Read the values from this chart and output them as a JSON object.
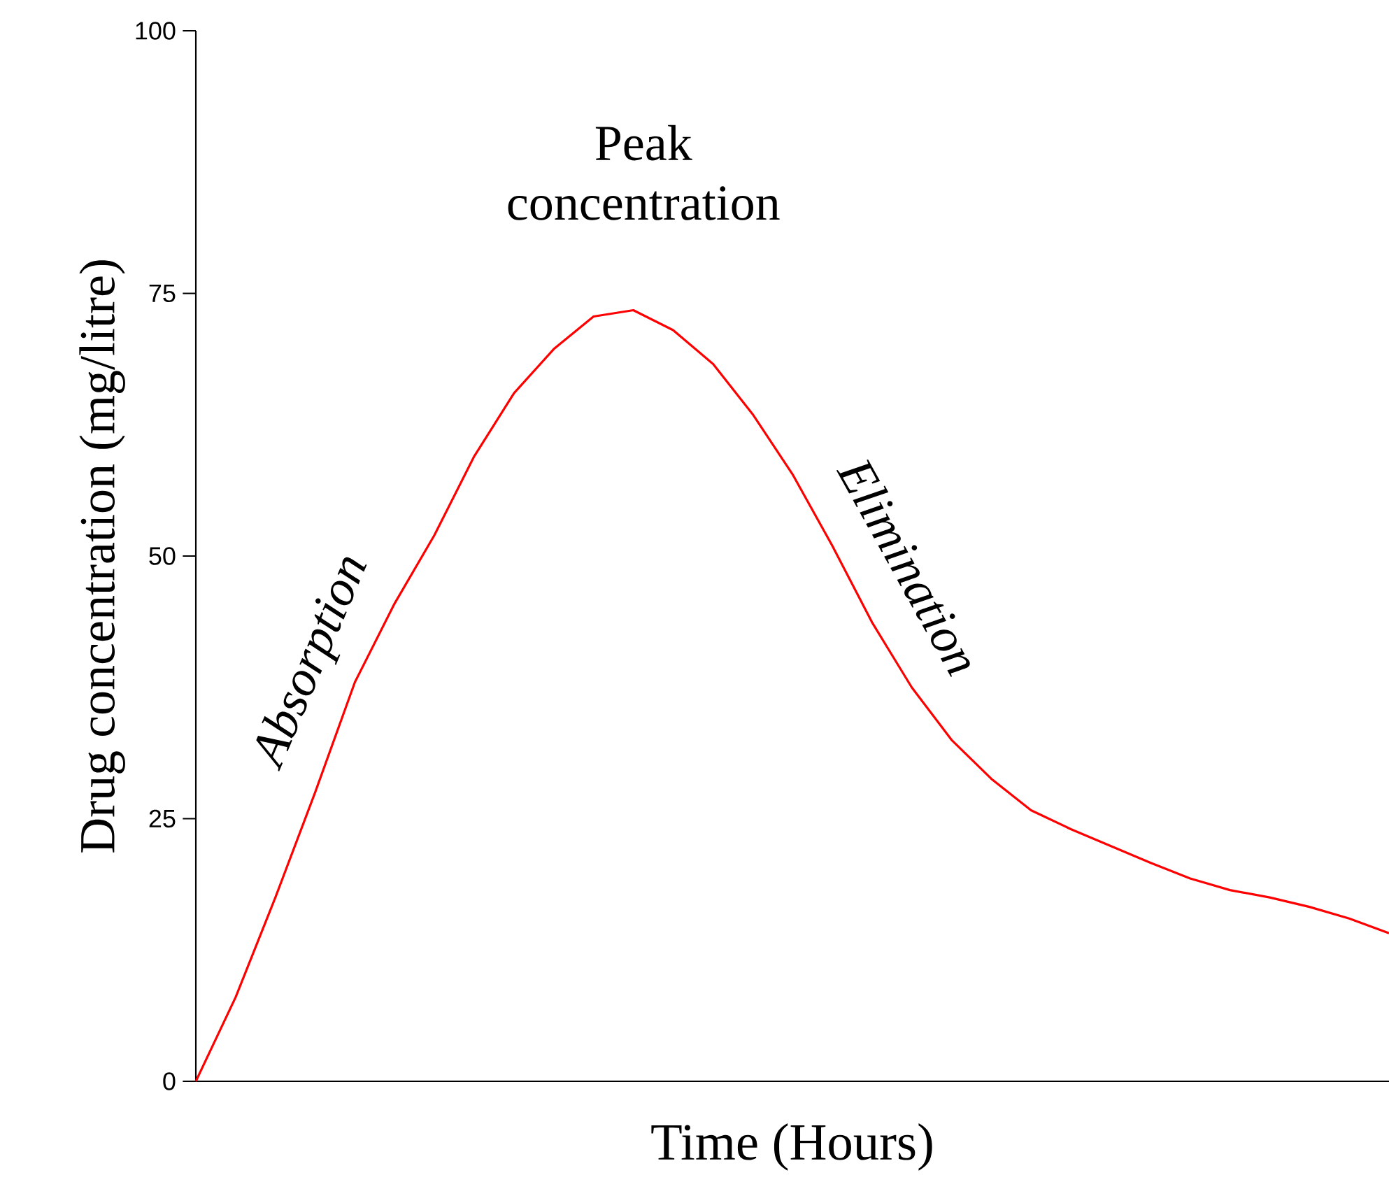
{
  "chart_data": {
    "type": "line",
    "xlabel": "Time  (Hours)",
    "ylabel": "Drug concentration (mg/litre)",
    "categories": [
      null,
      null,
      null,
      null,
      null,
      null,
      null,
      null,
      null,
      null,
      null,
      null,
      null,
      null,
      null,
      null,
      null,
      null,
      null,
      null,
      null,
      null,
      null,
      null,
      null,
      null,
      null,
      null,
      null,
      null,
      null
    ],
    "series": [
      {
        "color": "#ff0000",
        "values": [
          0,
          8,
          17.5,
          27.5,
          38,
          45.5,
          52,
          59.5,
          65.5,
          69.7,
          72.8,
          73.4,
          71.5,
          68.3,
          63.5,
          57.8,
          51,
          43.7,
          37.5,
          32.5,
          28.8,
          25.8,
          24,
          22.4,
          20.8,
          19.3,
          18.2,
          17.5,
          16.6,
          15.5,
          14.1
        ]
      }
    ],
    "ylim": [
      0,
      100
    ],
    "yticks": [
      0,
      25,
      50,
      75,
      100
    ],
    "tick_labels": "y",
    "grid": false,
    "marker": "none",
    "line_style": "solid",
    "annotations": [
      "Peak concentration",
      "Absorption",
      "Elimination"
    ]
  }
}
